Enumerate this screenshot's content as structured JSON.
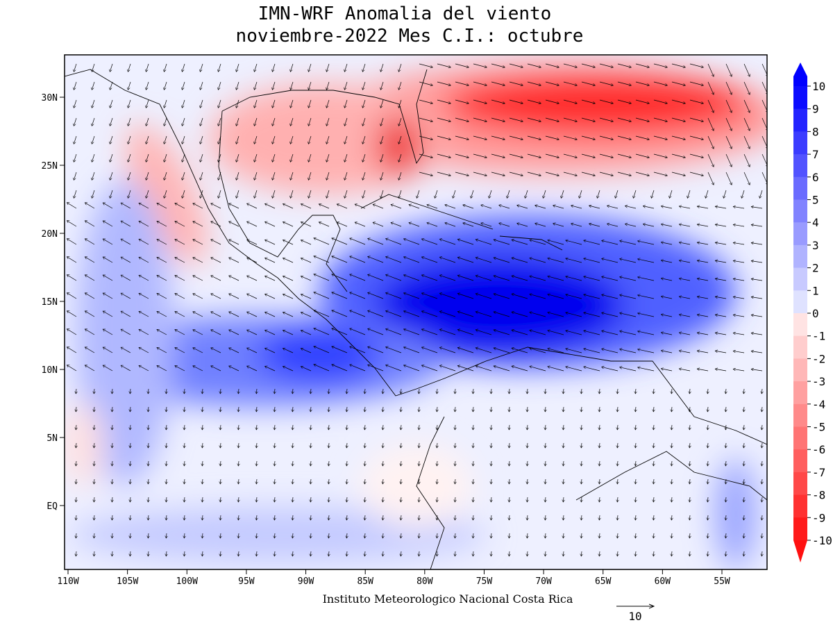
{
  "header": {
    "title_line1": "IMN-WRF Anomalia del viento",
    "title_line2": "noviembre-2022 Mes C.I.: octubre"
  },
  "map": {
    "lon_ticks": [
      {
        "value": -110,
        "label": "110W"
      },
      {
        "value": -105,
        "label": "105W"
      },
      {
        "value": -100,
        "label": "100W"
      },
      {
        "value": -95,
        "label": "95W"
      },
      {
        "value": -90,
        "label": "90W"
      },
      {
        "value": -85,
        "label": "85W"
      },
      {
        "value": -80,
        "label": "80W"
      },
      {
        "value": -75,
        "label": "75W"
      },
      {
        "value": -70,
        "label": "70W"
      },
      {
        "value": -65,
        "label": "65W"
      },
      {
        "value": -60,
        "label": "60W"
      },
      {
        "value": -55,
        "label": "55W"
      }
    ],
    "lat_ticks": [
      {
        "value": 30,
        "label": "30N"
      },
      {
        "value": 25,
        "label": "25N"
      },
      {
        "value": 20,
        "label": "20N"
      },
      {
        "value": 15,
        "label": "15N"
      },
      {
        "value": 10,
        "label": "10N"
      },
      {
        "value": 5,
        "label": "5N"
      },
      {
        "value": 0,
        "label": "EQ"
      }
    ]
  },
  "colorbar": {
    "levels": [
      10,
      9,
      8,
      7,
      6,
      5,
      4,
      3,
      2,
      1,
      0,
      -1,
      -2,
      -3,
      -4,
      -5,
      -6,
      -7,
      -8,
      -9,
      -10
    ]
  },
  "footer": {
    "credit": "Instituto Meteorologico Nacional Costa Rica",
    "reference_vector": "10"
  }
}
